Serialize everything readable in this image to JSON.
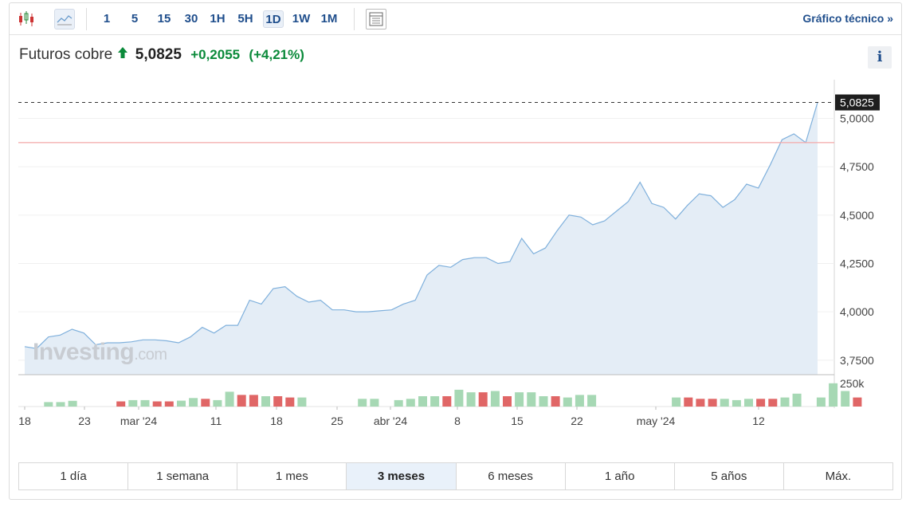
{
  "toolbar": {
    "icons": [
      "candlestick-icon",
      "area-chart-icon"
    ],
    "intervals": [
      "1",
      "5",
      "15",
      "30",
      "1H",
      "5H",
      "1D",
      "1W",
      "1M"
    ],
    "active_interval": "1D",
    "settings_icon": "layout-icon",
    "tech_link": "Gráfico técnico »"
  },
  "quote": {
    "name": "Futuros cobre",
    "direction_icon": "arrow-up-icon",
    "last": "5,0825",
    "change": "+0,2055",
    "change_pct": "(+4,21%)",
    "change_color": "#0a8a3a"
  },
  "info_button": "i",
  "watermark": {
    "brand": "Investing",
    "suffix": ".com"
  },
  "ranges": [
    "1 día",
    "1 semana",
    "1 mes",
    "3 meses",
    "6 meses",
    "1 año",
    "5 años",
    "Máx."
  ],
  "active_range": "3 meses",
  "chart_data": {
    "type": "area",
    "title": "",
    "x_ticks": [
      "18",
      "23",
      "mar '24",
      "11",
      "18",
      "25",
      "abr '24",
      "8",
      "15",
      "22",
      "may '24",
      "12"
    ],
    "y_ticks": [
      "5,0000",
      "4,7500",
      "4,5000",
      "4,2500",
      "4,0000",
      "3,7500"
    ],
    "y_tick_values": [
      5.0,
      4.75,
      4.5,
      4.25,
      4.0,
      3.75
    ],
    "ylim": [
      3.675,
      5.2
    ],
    "last_value_label": "5,0825",
    "last_value": 5.0825,
    "reference_line": 4.875,
    "line_color": "#7fb0dc",
    "fill_color": "#e4edf6",
    "series": [
      {
        "values": [
          3.82,
          3.81,
          3.87,
          3.88,
          3.91,
          3.89,
          3.83,
          3.84,
          3.84,
          3.845,
          3.855,
          3.855,
          3.85,
          3.84,
          3.87,
          3.92,
          3.89,
          3.93,
          3.93,
          4.06,
          4.04,
          4.12,
          4.13,
          4.08,
          4.05,
          4.06,
          4.01,
          4.01,
          4.0,
          4.0,
          4.005,
          4.01,
          4.04,
          4.06,
          4.19,
          4.24,
          4.23,
          4.27,
          4.28,
          4.28,
          4.25,
          4.26,
          4.38,
          4.3,
          4.33,
          4.42,
          4.5,
          4.49,
          4.45,
          4.47,
          4.52,
          4.57,
          4.67,
          4.56,
          4.54,
          4.48,
          4.55,
          4.61,
          4.6,
          4.54,
          4.58,
          4.66,
          4.64,
          4.76,
          4.89,
          4.92,
          4.875,
          5.0825
        ]
      }
    ],
    "volume": {
      "label": "250k",
      "max": 250000,
      "up_color": "#a6d8b4",
      "down_color": "#e06666",
      "bars": [
        null,
        null,
        [
          "u",
          48000
        ],
        [
          "u",
          48000
        ],
        [
          "u",
          62000
        ],
        null,
        null,
        null,
        [
          "d",
          56000
        ],
        [
          "u",
          70000
        ],
        [
          "u",
          70000
        ],
        [
          "d",
          56000
        ],
        [
          "d",
          56000
        ],
        [
          "u",
          64000
        ],
        [
          "u",
          92000
        ],
        [
          "d",
          84000
        ],
        [
          "u",
          70000
        ],
        [
          "u",
          160000
        ],
        [
          "d",
          126000
        ],
        [
          "d",
          126000
        ],
        [
          "u",
          112000
        ],
        [
          "d",
          112000
        ],
        [
          "d",
          98000
        ],
        [
          "u",
          98000
        ],
        null,
        null,
        null,
        null,
        [
          "u",
          84000
        ],
        [
          "u",
          84000
        ],
        null,
        [
          "u",
          70000
        ],
        [
          "u",
          84000
        ],
        [
          "u",
          112000
        ],
        [
          "u",
          112000
        ],
        [
          "d",
          112000
        ],
        [
          "u",
          182000
        ],
        [
          "u",
          154000
        ],
        [
          "d",
          154000
        ],
        [
          "u",
          168000
        ],
        [
          "d",
          112000
        ],
        [
          "u",
          154000
        ],
        [
          "u",
          154000
        ],
        [
          "u",
          112000
        ],
        [
          "d",
          112000
        ],
        [
          "u",
          98000
        ],
        [
          "u",
          126000
        ],
        [
          "u",
          126000
        ],
        null,
        null,
        null,
        null,
        null,
        null,
        [
          "u",
          98000
        ],
        [
          "d",
          98000
        ],
        [
          "d",
          84000
        ],
        [
          "d",
          84000
        ],
        [
          "u",
          84000
        ],
        [
          "u",
          70000
        ],
        [
          "u",
          84000
        ],
        [
          "d",
          84000
        ],
        [
          "d",
          84000
        ],
        [
          "u",
          98000
        ],
        [
          "u",
          140000
        ],
        null,
        [
          "u",
          98000
        ],
        [
          "u",
          252000
        ],
        [
          "u",
          168000
        ],
        [
          "d",
          98000
        ]
      ]
    }
  }
}
